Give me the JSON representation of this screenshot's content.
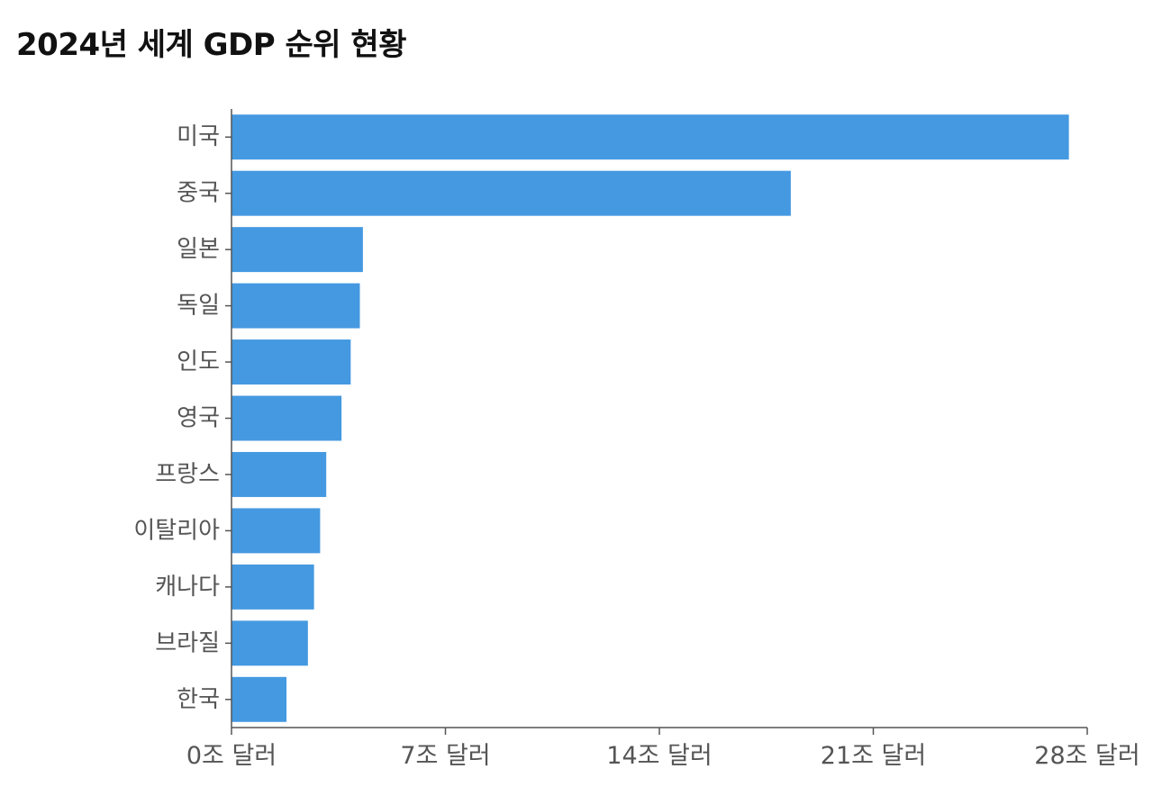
{
  "chart_data": {
    "type": "bar",
    "orientation": "horizontal",
    "title": "2024년 세계 GDP 순위 현황",
    "categories": [
      "미국",
      "중국",
      "일본",
      "독일",
      "인도",
      "영국",
      "프랑스",
      "이탈리아",
      "캐나다",
      "브라질",
      "한국"
    ],
    "values": [
      27.4,
      18.3,
      4.3,
      4.2,
      3.9,
      3.6,
      3.1,
      2.9,
      2.7,
      2.5,
      1.8
    ],
    "x_ticks": [
      0,
      7,
      14,
      21,
      28
    ],
    "x_tick_labels": [
      "0조 달러",
      "7조 달러",
      "14조 달러",
      "21조 달러",
      "28조 달러"
    ],
    "xlim": [
      0,
      28
    ],
    "xlabel": "",
    "ylabel": "",
    "bar_color": "#4499e1",
    "grid": false,
    "legend": "none"
  }
}
